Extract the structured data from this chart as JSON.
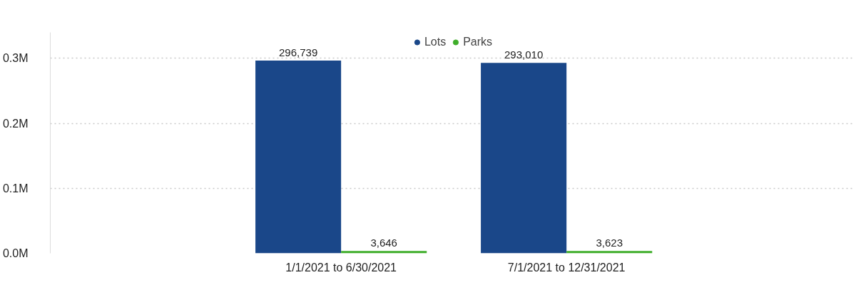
{
  "chart_data": {
    "type": "bar",
    "categories": [
      "1/1/2021 to 6/30/2021",
      "7/1/2021 to 12/31/2021"
    ],
    "series": [
      {
        "name": "Lots",
        "color": "#1a4789",
        "values": [
          296739,
          293010
        ],
        "value_labels": [
          "296,739",
          "293,010"
        ]
      },
      {
        "name": "Parks",
        "color": "#3fae2a",
        "values": [
          3646,
          3623
        ],
        "value_labels": [
          "3,646",
          "3,623"
        ]
      }
    ],
    "ylim": [
      0,
      340000
    ],
    "yticks": [
      {
        "value": 0,
        "label": "0.0M"
      },
      {
        "value": 100000,
        "label": "0.1M"
      },
      {
        "value": 200000,
        "label": "0.2M"
      },
      {
        "value": 300000,
        "label": "0.3M"
      }
    ],
    "grid": "y",
    "legend": "top"
  }
}
